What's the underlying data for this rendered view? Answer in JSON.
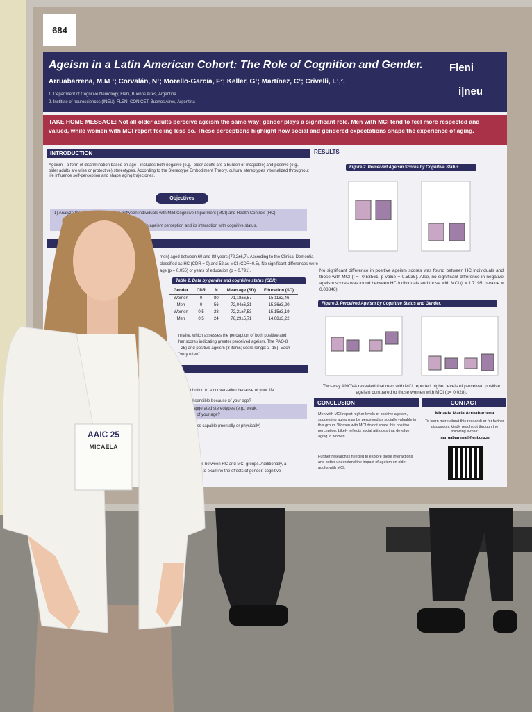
{
  "board_number": "684",
  "poster": {
    "title": "Ageism in a Latin American Cohort: The Role of Cognition and Gender.",
    "authors": "Arruabarrena, M.M ¹; Corvalán, N¹; Morello-García, F²; Keller, G¹; Martínez, C¹; Crivelli, L¹,².",
    "affiliations": [
      "1. Department of Cognitive Neurology, Fleni, Buenos Aires, Argentina",
      "2. Institute of neurosciences (INEU), FLENI-CONICET, Buenos Aires, Argentina"
    ],
    "logos": [
      "Fleni",
      "i|neu"
    ],
    "take_home": "TAKE HOME MESSAGE: Not all older adults perceive ageism the same way; gender plays a significant role. Men with MCI tend to feel more respected and valued, while women with MCI report feeling less so. These perceptions highlight how social and gendered expectations shape the experience of aging.",
    "introduction": {
      "heading": "INTRODUCTION",
      "text": "Ageism—a form of discrimination based on age—includes both negative (e.g., older adults are a burden or incapable) and positive (e.g., older adults are wise or protective) stereotypes. According to the Stereotype Embodiment Theory, cultural stereotypes internalized throughout life influence self-perception and shape aging trajectories.",
      "objectives_heading": "Objectives",
      "objective": "1) Analyze the perception of ageism between individuals with Mild Cognitive Impairment (MCI) and Health Controls (HC)",
      "objective_2": "of gender in ageism perception and its interaction with cognitive status."
    },
    "methods": {
      "lines": [
        "men) aged between 60 and 88 years (72,2±6,7). According to the Clinical Dementia",
        "classified as HC (CDR = 0) and 52 as MCI (CDR=0.5). No significant differences were",
        "age (p = 0.055) or years of education (p = 0.791)."
      ],
      "table_caption": "Table 2. Data by gender and cognitive status (CDR)",
      "table": {
        "header": [
          "Gender",
          "CDR",
          "N",
          "Mean age (SD)",
          "Education (SD)"
        ],
        "rows": [
          [
            "Women",
            "0",
            "80",
            "71,18±6,57",
            "15,11±2,46"
          ],
          [
            "Men",
            "0",
            "56",
            "72,04±6,31",
            "15,36±3,20"
          ],
          [
            "Women",
            "0,5",
            "28",
            "72,21±7,53",
            "15,15±3,19"
          ],
          [
            "Men",
            "0,5",
            "24",
            "76,29±5,71",
            "14,08±3,22"
          ]
        ]
      },
      "questionnaire_lines": [
        "nnaire, which assesses the perception of both positive and",
        "her scores indicating greater perceived ageism. The PAQ-8",
        "–25) and positive ageism (3 items; score range: 3–15). Each",
        "\"very often\"."
      ],
      "paq_heading": "PAQ)",
      "items": [
        "tribution to a conversation because of your life",
        "nd sensible because of your age?",
        "exaggerated stereotypes (e.g., weak,",
        "use of your age?",
        "re less capable (mentally or physically)"
      ],
      "analysis_lines": [
        "es between HC and MCI groups. Additionally, a",
        "d to examine the effects of gender, cognitive"
      ]
    },
    "results": {
      "heading": "RESULTS",
      "figure2_caption": "Figure 2. Perceived Ageism Scores by Cognitive Status.",
      "figure2_text": "No significant difference in positive ageism scores was found between HC individuals and those with MCI (t = -0.53561, p-value = 0.5935). Also, no significant difference in negative ageism scores was found between HC individuals and those with MCI (t = 1.7195, p-value = 0.08846).",
      "figure3_caption": "Figure 3. Perceived Ageism by Cognitive Status and Gender.",
      "figure3_text": "Two-way ANOVA revealed that men with MCI reported higher levels of perceived positive ageism compared to those women with MCI (p= 0.028)."
    },
    "conclusion": {
      "heading": "CONCLUSION",
      "points": [
        "Men with MCI report higher levels of positive ageism, suggesting aging may be perceived as socially valuable in this group. Women with MCI do not share this positive perception. Likely reflects social attitudes that devalue aging in women.",
        "Further research is needed to explore these interactions and better understand the impact of ageism on older adults with MCI."
      ]
    },
    "contact": {
      "heading": "CONTACT",
      "name": "Micaela María Arruabarrena",
      "text": "To learn more about this research or for further discussion, kindly reach out through the following e-mail:",
      "email": "marruabarrena@fleni.org.ar"
    }
  },
  "badge": {
    "event": "AAIC 25",
    "name": "MICAELA"
  }
}
